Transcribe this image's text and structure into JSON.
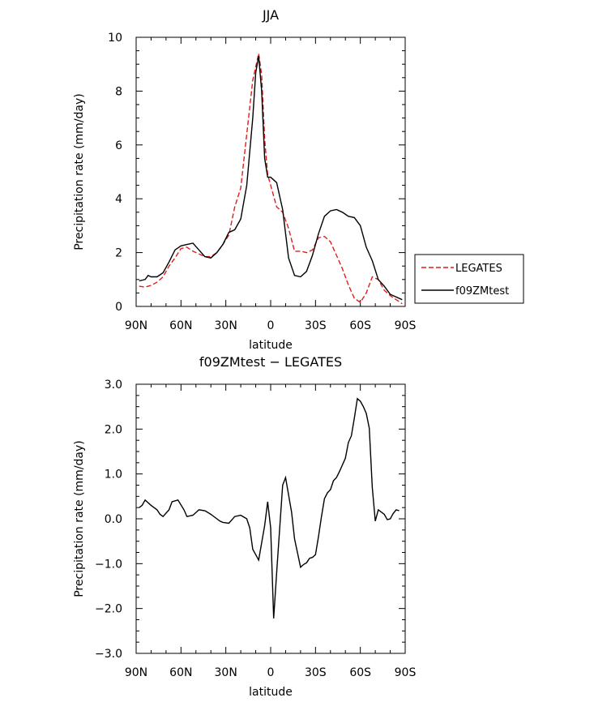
{
  "chart_data": [
    {
      "type": "line",
      "title": "JJA",
      "xlabel": "latitude",
      "ylabel": "Precipitation rate (mm/day)",
      "xlim": [
        90,
        -90
      ],
      "ylim": [
        0,
        10
      ],
      "xticks": [
        90,
        60,
        30,
        0,
        -30,
        -60,
        -90
      ],
      "xtick_labels": [
        "90N",
        "60N",
        "30N",
        "0",
        "30S",
        "60S",
        "90S"
      ],
      "yticks": [
        0,
        2,
        4,
        6,
        8,
        10
      ],
      "ytick_labels": [
        "0",
        "2",
        "4",
        "6",
        "8",
        "10"
      ],
      "grid": false,
      "legend": "right",
      "series": [
        {
          "name": "LEGATES",
          "color": "#e41a1c",
          "dash": "dashed",
          "x": [
            88,
            84,
            80,
            76,
            72,
            68,
            64,
            60,
            56,
            52,
            48,
            44,
            40,
            36,
            32,
            28,
            24,
            20,
            16,
            12,
            8,
            6,
            4,
            2,
            0,
            -4,
            -8,
            -12,
            -16,
            -20,
            -24,
            -28,
            -32,
            -36,
            -40,
            -44,
            -48,
            -52,
            -56,
            -60,
            -64,
            -68,
            -72,
            -76,
            -80,
            -84,
            -88
          ],
          "y": [
            0.75,
            0.72,
            0.78,
            0.9,
            1.1,
            1.5,
            1.8,
            2.15,
            2.2,
            2.05,
            1.95,
            1.85,
            1.85,
            2.0,
            2.3,
            2.65,
            3.7,
            4.4,
            6.4,
            8.4,
            9.4,
            8.6,
            6.2,
            4.9,
            4.5,
            3.7,
            3.5,
            2.9,
            2.05,
            2.05,
            2.0,
            2.1,
            2.55,
            2.6,
            2.4,
            1.9,
            1.4,
            0.8,
            0.3,
            0.15,
            0.5,
            1.1,
            1.0,
            0.6,
            0.4,
            0.25,
            0.1
          ]
        },
        {
          "name": "f09ZMtest",
          "color": "#000000",
          "dash": "solid",
          "x": [
            88,
            84,
            82,
            80,
            76,
            72,
            68,
            64,
            60,
            56,
            52,
            48,
            44,
            40,
            36,
            32,
            28,
            24,
            20,
            16,
            12,
            10,
            8,
            6,
            4,
            2,
            0,
            -4,
            -8,
            -12,
            -16,
            -20,
            -24,
            -28,
            -32,
            -36,
            -40,
            -44,
            -48,
            -52,
            -56,
            -60,
            -64,
            -68,
            -72,
            -76,
            -80,
            -84,
            -88
          ],
          "y": [
            0.95,
            1.0,
            1.15,
            1.1,
            1.1,
            1.25,
            1.65,
            2.1,
            2.25,
            2.3,
            2.35,
            2.1,
            1.85,
            1.8,
            2.0,
            2.3,
            2.75,
            2.85,
            3.25,
            4.5,
            7.0,
            8.7,
            9.3,
            8.0,
            5.5,
            4.8,
            4.8,
            4.6,
            3.6,
            1.8,
            1.15,
            1.1,
            1.3,
            1.9,
            2.7,
            3.35,
            3.55,
            3.6,
            3.5,
            3.35,
            3.3,
            3.0,
            2.2,
            1.7,
            1.0,
            0.75,
            0.45,
            0.35,
            0.25
          ]
        }
      ]
    },
    {
      "type": "line",
      "title": "f09ZMtest − LEGATES",
      "xlabel": "latitude",
      "ylabel": "Precipitation rate (mm/day)",
      "xlim": [
        90,
        -90
      ],
      "ylim": [
        -3,
        3
      ],
      "xticks": [
        90,
        60,
        30,
        0,
        -30,
        -60,
        -90
      ],
      "xtick_labels": [
        "90N",
        "60N",
        "30N",
        "0",
        "30S",
        "60S",
        "90S"
      ],
      "yticks": [
        -3,
        -2,
        -1,
        0,
        1,
        2,
        3
      ],
      "ytick_labels": [
        "−3.0",
        "−2.0",
        "−1.0",
        "0.0",
        "1.0",
        "2.0",
        "3.0"
      ],
      "grid": false,
      "series": [
        {
          "color": "#000000",
          "dash": "solid",
          "x": [
            88,
            86,
            84,
            80,
            76,
            74,
            72,
            68,
            66,
            62,
            58,
            56,
            52,
            48,
            44,
            40,
            36,
            34,
            32,
            28,
            24,
            20,
            16,
            14,
            12,
            10,
            8,
            4,
            2,
            0,
            -2,
            -4,
            -8,
            -10,
            -14,
            -16,
            -20,
            -22,
            -24,
            -26,
            -28,
            -30,
            -32,
            -34,
            -36,
            -38,
            -40,
            -42,
            -44,
            -46,
            -48,
            -50,
            -52,
            -54,
            -56,
            -58,
            -60,
            -62,
            -64,
            -66,
            -68,
            -70,
            -72,
            -74,
            -76,
            -78,
            -80,
            -82,
            -84,
            -86
          ],
          "y": [
            0.25,
            0.3,
            0.42,
            0.3,
            0.2,
            0.1,
            0.05,
            0.2,
            0.38,
            0.42,
            0.2,
            0.05,
            0.08,
            0.2,
            0.18,
            0.1,
            0.0,
            -0.05,
            -0.08,
            -0.1,
            0.05,
            0.08,
            0.0,
            -0.2,
            -0.68,
            -0.8,
            -0.92,
            -0.15,
            0.38,
            -0.2,
            -2.22,
            -1.2,
            0.75,
            0.92,
            0.15,
            -0.45,
            -1.08,
            -1.02,
            -0.98,
            -0.88,
            -0.86,
            -0.8,
            -0.4,
            0.05,
            0.45,
            0.58,
            0.65,
            0.85,
            0.92,
            1.05,
            1.2,
            1.35,
            1.7,
            1.85,
            2.25,
            2.68,
            2.62,
            2.5,
            2.35,
            2.02,
            0.7,
            -0.05,
            0.2,
            0.15,
            0.1,
            -0.02,
            0.0,
            0.12,
            0.2,
            0.18
          ]
        }
      ]
    }
  ]
}
